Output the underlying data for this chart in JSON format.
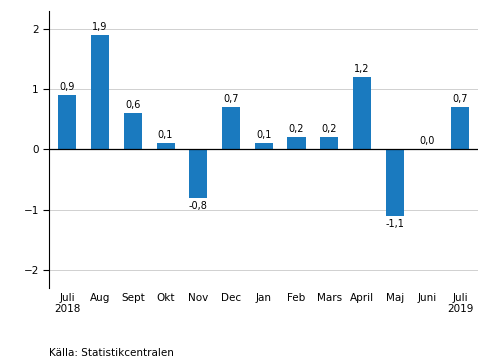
{
  "categories": [
    "Juli\n2018",
    "Aug",
    "Sept",
    "Okt",
    "Nov",
    "Dec",
    "Jan",
    "Feb",
    "Mars",
    "April",
    "Maj",
    "Juni",
    "Juli\n2019"
  ],
  "values": [
    0.9,
    1.9,
    0.6,
    0.1,
    -0.8,
    0.7,
    0.1,
    0.2,
    0.2,
    1.2,
    -1.1,
    0.0,
    0.7
  ],
  "bar_color": "#1a7abf",
  "ylim": [
    -2.3,
    2.3
  ],
  "yticks": [
    -2,
    -1,
    0,
    1,
    2
  ],
  "source_text": "Källa: Statistikcentralen",
  "label_fontsize": 7.0,
  "tick_fontsize": 7.5,
  "source_fontsize": 7.5,
  "bar_width": 0.55
}
